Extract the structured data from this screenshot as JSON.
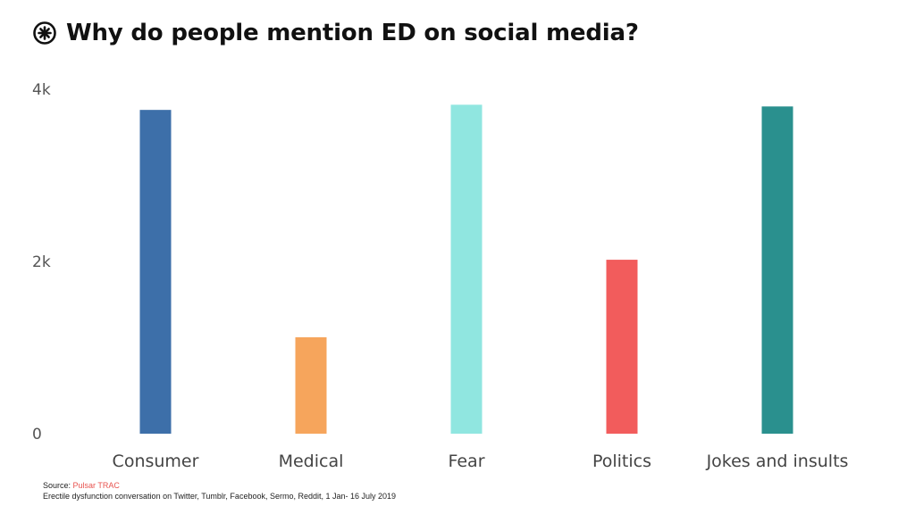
{
  "header": {
    "title": "Why do people mention ED on social media?",
    "logo_icon": "pulsar-asterisk-icon"
  },
  "chart_data": {
    "type": "bar",
    "title": "Why do people mention ED on social media?",
    "xlabel": "",
    "ylabel": "",
    "categories": [
      "Consumer",
      "Medical",
      "Fear",
      "Politics",
      "Jokes and insults"
    ],
    "values": [
      3760,
      1120,
      3820,
      2020,
      3800
    ],
    "colors": [
      "#3d6fa9",
      "#f6a55c",
      "#90e6e0",
      "#f25c5c",
      "#2a908e"
    ],
    "ylim": [
      0,
      4000
    ],
    "yticks": [
      0,
      2000,
      4000
    ],
    "ytick_labels": [
      "0",
      "2k",
      "4k"
    ],
    "grid": false,
    "legend": "none"
  },
  "footer": {
    "source_prefix": "Source: ",
    "source_name": "Pulsar TRAC",
    "note": "Erectile dysfunction conversation on Twitter, Tumblr, Facebook, Sermo, Reddit, 1 Jan- 16 July 2019"
  }
}
